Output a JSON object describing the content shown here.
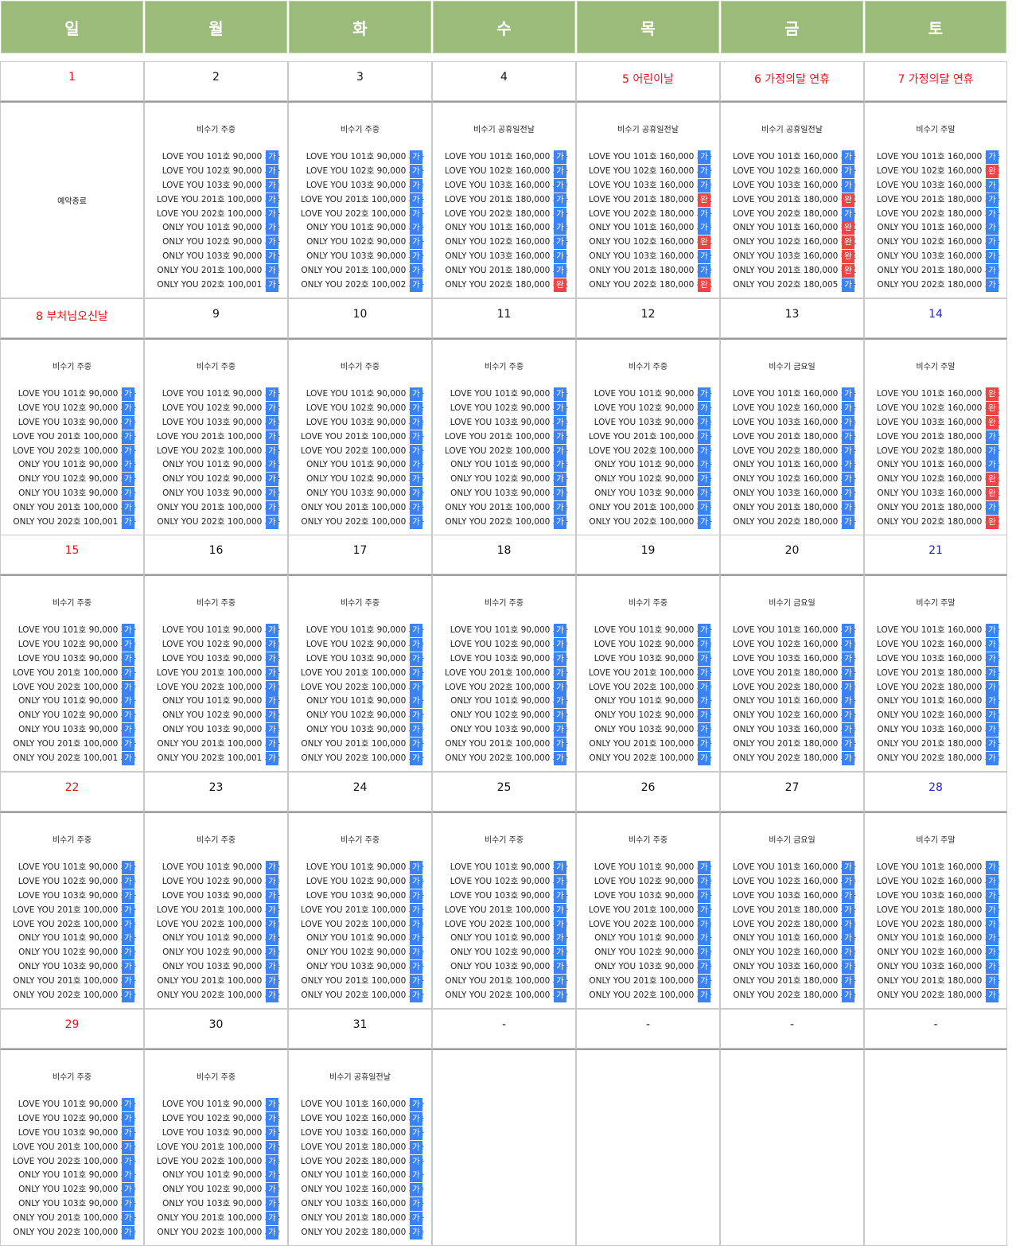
{
  "weekdays": [
    "일",
    "월",
    "화",
    "수",
    "목",
    "금",
    "토"
  ],
  "closed_text": "예약종료",
  "status_full": {
    "avail": "가능",
    "done": "완료"
  },
  "status_glyph": {
    "avail": "가",
    "done": "완"
  },
  "colors": {
    "header_bg": "#9bbb7b",
    "holiday": "#e8141a",
    "saturday": "#2222dd",
    "available": "#3b82f6",
    "booked": "#ef4444"
  },
  "weeks": [
    {
      "days": [
        {
          "label": "1",
          "color": "red",
          "closed": true
        },
        {
          "label": "2",
          "season": "비수기 주중",
          "tier": "low",
          "last": "100,001"
        },
        {
          "label": "3",
          "season": "비수기 주중",
          "tier": "low",
          "last": "100,002"
        },
        {
          "label": "4",
          "season": "비수기 공휴일전날",
          "tier": "high",
          "done": [
            9
          ]
        },
        {
          "label": "5 어린이날",
          "color": "red",
          "season": "비수기 공휴일전날",
          "tier": "high",
          "done": [
            3,
            6,
            9
          ]
        },
        {
          "label": "6 가정의달 연휴",
          "color": "red",
          "season": "비수기 공휴일전날",
          "tier": "high",
          "done": [
            3,
            5,
            6,
            7,
            8
          ],
          "last": "180,005"
        },
        {
          "label": "7 가정의달 연휴",
          "color": "red",
          "season": "비수기 주말",
          "tier": "high",
          "done": [
            1
          ]
        }
      ]
    },
    {
      "days": [
        {
          "label": "8 부처님오신날",
          "color": "red",
          "season": "비수기 주중",
          "tier": "low",
          "last": "100,001"
        },
        {
          "label": "9",
          "season": "비수기 주중",
          "tier": "low"
        },
        {
          "label": "10",
          "season": "비수기 주중",
          "tier": "low"
        },
        {
          "label": "11",
          "season": "비수기 주중",
          "tier": "low"
        },
        {
          "label": "12",
          "season": "비수기 주중",
          "tier": "low"
        },
        {
          "label": "13",
          "season": "비수기 금요일",
          "tier": "high"
        },
        {
          "label": "14",
          "color": "blue",
          "season": "비수기 주말",
          "tier": "high",
          "done": [
            0,
            1,
            2,
            6,
            7,
            9
          ]
        }
      ]
    },
    {
      "days": [
        {
          "label": "15",
          "color": "red",
          "season": "비수기 주중",
          "tier": "low",
          "last": "100,001"
        },
        {
          "label": "16",
          "season": "비수기 주중",
          "tier": "low",
          "last": "100,001"
        },
        {
          "label": "17",
          "season": "비수기 주중",
          "tier": "low"
        },
        {
          "label": "18",
          "season": "비수기 주중",
          "tier": "low"
        },
        {
          "label": "19",
          "season": "비수기 주중",
          "tier": "low"
        },
        {
          "label": "20",
          "season": "비수기 금요일",
          "tier": "high"
        },
        {
          "label": "21",
          "color": "blue",
          "season": "비수기 주말",
          "tier": "high"
        }
      ]
    },
    {
      "days": [
        {
          "label": "22",
          "color": "red",
          "season": "비수기 주중",
          "tier": "low"
        },
        {
          "label": "23",
          "season": "비수기 주중",
          "tier": "low"
        },
        {
          "label": "24",
          "season": "비수기 주중",
          "tier": "low"
        },
        {
          "label": "25",
          "season": "비수기 주중",
          "tier": "low"
        },
        {
          "label": "26",
          "season": "비수기 주중",
          "tier": "low"
        },
        {
          "label": "27",
          "season": "비수기 금요일",
          "tier": "high"
        },
        {
          "label": "28",
          "color": "blue",
          "season": "비수기 주말",
          "tier": "high"
        }
      ]
    },
    {
      "days": [
        {
          "label": "29",
          "color": "red",
          "season": "비수기 주중",
          "tier": "low"
        },
        {
          "label": "30",
          "season": "비수기 주중",
          "tier": "low"
        },
        {
          "label": "31",
          "season": "비수기 공휴일전날",
          "tier": "high"
        },
        {
          "label": "-",
          "empty": true
        },
        {
          "label": "-",
          "empty": true
        },
        {
          "label": "-",
          "empty": true
        },
        {
          "label": "-",
          "empty": true
        }
      ]
    }
  ],
  "rooms": [
    "LOVE YOU 101호",
    "LOVE YOU 102호",
    "LOVE YOU 103호",
    "LOVE YOU 201호",
    "LOVE YOU 202호",
    "ONLY YOU 101호",
    "ONLY YOU 102호",
    "ONLY YOU 103호",
    "ONLY YOU 201호",
    "ONLY YOU 202호"
  ],
  "prices": {
    "low": [
      "90,000",
      "90,000",
      "90,000",
      "100,000",
      "100,000",
      "90,000",
      "90,000",
      "90,000",
      "100,000",
      "100,000"
    ],
    "high": [
      "160,000",
      "160,000",
      "160,000",
      "180,000",
      "180,000",
      "160,000",
      "160,000",
      "160,000",
      "180,000",
      "180,000"
    ]
  }
}
